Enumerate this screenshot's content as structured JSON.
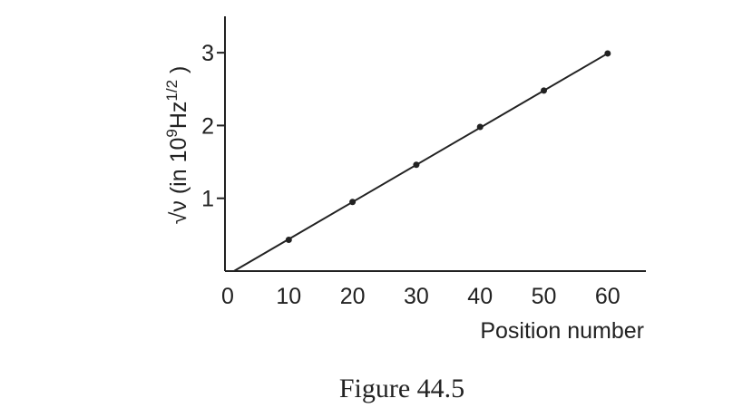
{
  "chart_data": {
    "type": "scatter",
    "x": [
      10,
      20,
      30,
      40,
      50,
      60
    ],
    "values": [
      0.43,
      0.95,
      1.46,
      1.98,
      2.48,
      2.99
    ],
    "fit_line": {
      "x": [
        1.4,
        60
      ],
      "values": [
        0,
        2.99
      ]
    },
    "color": "#222222",
    "xlim": [
      0,
      66
    ],
    "ylim": [
      0,
      3.5
    ],
    "xticks": [
      0,
      10,
      20,
      30,
      40,
      50,
      60
    ],
    "yticks": [
      1,
      2,
      3
    ],
    "xlabel": "Position number",
    "ylabel": {
      "root": "√ν",
      "text": " (in 10",
      "exp1": "9",
      "unit": "Hz",
      "exp2": "1/2",
      "close": " )"
    },
    "caption": "Figure 44.5"
  }
}
